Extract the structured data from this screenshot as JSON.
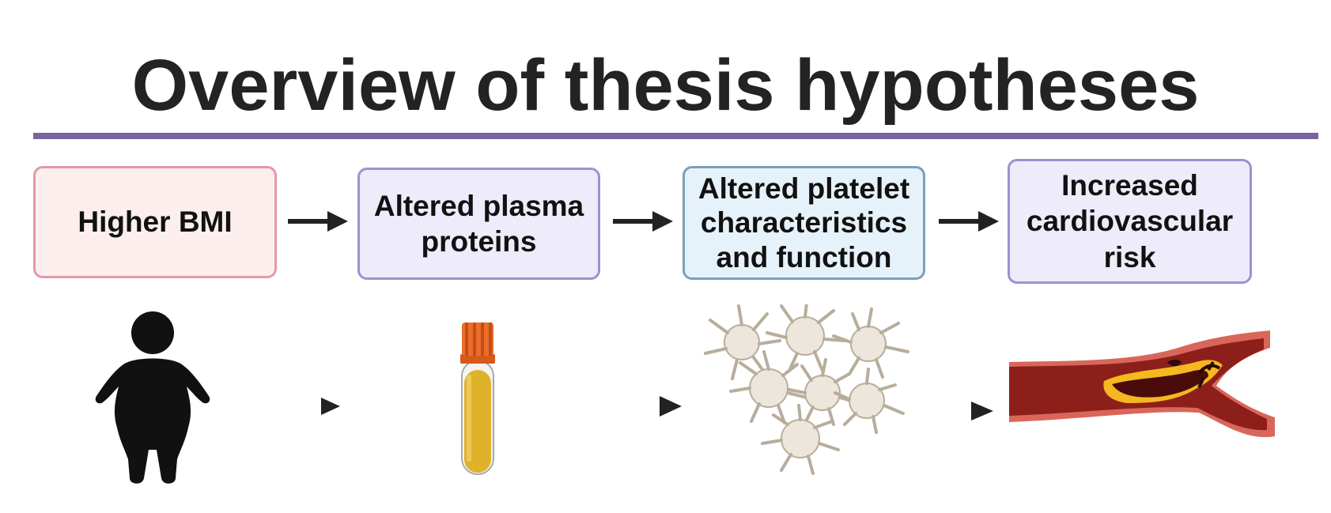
{
  "title": "Overview of thesis hypotheses",
  "steps": [
    {
      "label": "Higher BMI"
    },
    {
      "label": "Altered plasma proteins"
    },
    {
      "label": "Altered platelet characteristics and function"
    },
    {
      "label": "Increased cardiovascular risk"
    }
  ],
  "colors": {
    "rule": "#7a63a0",
    "box1_fill": "#fdeeee",
    "box1_border": "#e398aa",
    "box2_fill": "#eeebfa",
    "box2_border": "#a08fd2",
    "box3_fill": "#e6f2fa",
    "box3_border": "#7a9fbc",
    "box4_fill": "#eeebfa",
    "box4_border": "#a08fd2"
  },
  "icons": [
    "person-icon",
    "blood-tube-icon",
    "platelets-icon",
    "artery-icon"
  ]
}
